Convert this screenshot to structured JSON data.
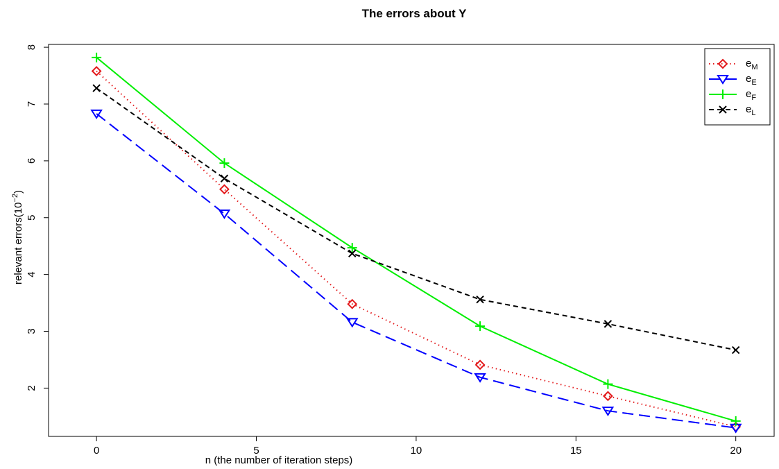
{
  "chart_data": {
    "type": "line",
    "title": "The errors about Y",
    "xlabel": "n (the number of iteration steps)",
    "ylabel_main": "relevant errors(10",
    "ylabel_exp": "−2",
    "ylabel_close": ")",
    "x": [
      0,
      4,
      8,
      12,
      16,
      20
    ],
    "xlim": [
      -1.5,
      21.2
    ],
    "ylim": [
      1.15,
      8.05
    ],
    "xticks": [
      0,
      5,
      10,
      15,
      20
    ],
    "yticks": [
      2,
      3,
      4,
      5,
      6,
      7,
      8
    ],
    "legend_position": "top-right",
    "grid": false,
    "series": [
      {
        "name_main": "e",
        "name_sub": "M",
        "color": "#e31a1c",
        "marker": "diamond",
        "dash": "dotted",
        "values": [
          7.58,
          5.5,
          3.48,
          2.41,
          1.86,
          1.32
        ]
      },
      {
        "name_main": "e",
        "name_sub": "E",
        "color": "#0000ff",
        "marker": "triangle-down",
        "dash": "longdash",
        "values": [
          6.83,
          5.07,
          3.16,
          2.19,
          1.6,
          1.3
        ]
      },
      {
        "name_main": "e",
        "name_sub": "F",
        "color": "#00ee00",
        "marker": "plus",
        "dash": "solid",
        "values": [
          7.82,
          5.96,
          4.47,
          3.09,
          2.07,
          1.42
        ]
      },
      {
        "name_main": "e",
        "name_sub": "L",
        "color": "#000000",
        "marker": "cross",
        "dash": "dashed",
        "values": [
          7.28,
          5.69,
          4.37,
          3.56,
          3.13,
          2.67
        ]
      }
    ]
  }
}
